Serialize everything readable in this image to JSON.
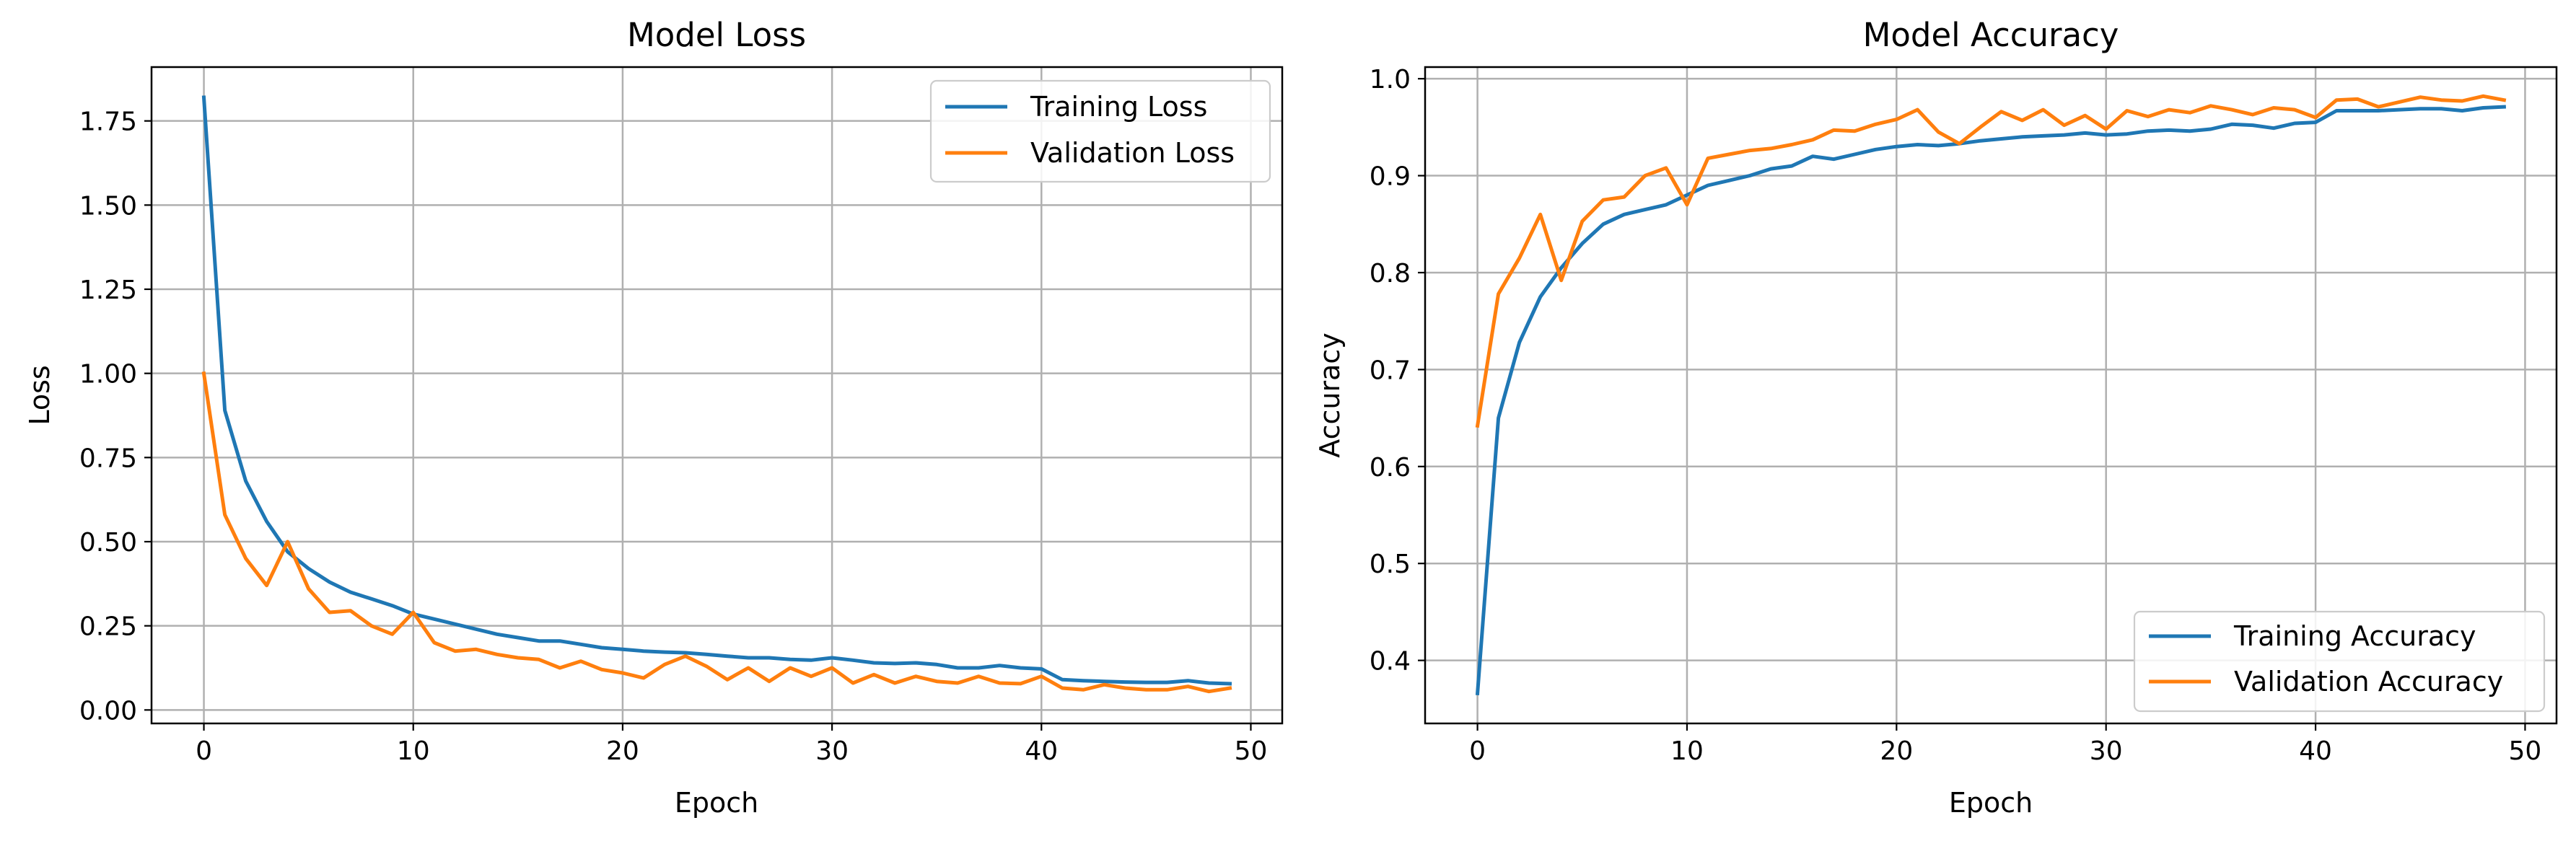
{
  "colors": {
    "training": "#1f77b4",
    "validation": "#ff7f0e"
  },
  "chart_data": [
    {
      "type": "line",
      "title": "Model Loss",
      "xlabel": "Epoch",
      "ylabel": "Loss",
      "grid": true,
      "legend_position": "top-right",
      "xlim": [
        -2.5,
        51.5
      ],
      "ylim": [
        -0.04,
        1.91
      ],
      "xticks": [
        0,
        10,
        20,
        30,
        40,
        50
      ],
      "xtick_labels": [
        "0",
        "10",
        "20",
        "30",
        "40",
        "50"
      ],
      "yticks": [
        0.0,
        0.25,
        0.5,
        0.75,
        1.0,
        1.25,
        1.5,
        1.75
      ],
      "ytick_labels": [
        "0.00",
        "0.25",
        "0.50",
        "0.75",
        "1.00",
        "1.25",
        "1.50",
        "1.75"
      ],
      "x": [
        0,
        1,
        2,
        3,
        4,
        5,
        6,
        7,
        8,
        9,
        10,
        11,
        12,
        13,
        14,
        15,
        16,
        17,
        18,
        19,
        20,
        21,
        22,
        23,
        24,
        25,
        26,
        27,
        28,
        29,
        30,
        31,
        32,
        33,
        34,
        35,
        36,
        37,
        38,
        39,
        40,
        41,
        42,
        43,
        44,
        45,
        46,
        47,
        48,
        49
      ],
      "series": [
        {
          "name": "Training Loss",
          "color_key": "training",
          "values": [
            1.82,
            0.89,
            0.68,
            0.56,
            0.47,
            0.42,
            0.38,
            0.35,
            0.33,
            0.31,
            0.285,
            0.27,
            0.255,
            0.24,
            0.225,
            0.215,
            0.205,
            0.205,
            0.195,
            0.185,
            0.18,
            0.175,
            0.172,
            0.17,
            0.165,
            0.16,
            0.155,
            0.155,
            0.15,
            0.148,
            0.155,
            0.148,
            0.14,
            0.138,
            0.14,
            0.135,
            0.125,
            0.125,
            0.132,
            0.125,
            0.122,
            0.09,
            0.087,
            0.085,
            0.083,
            0.082,
            0.082,
            0.087,
            0.08,
            0.078
          ]
        },
        {
          "name": "Validation Loss",
          "color_key": "validation",
          "values": [
            1.0,
            0.58,
            0.45,
            0.37,
            0.5,
            0.36,
            0.29,
            0.295,
            0.25,
            0.225,
            0.29,
            0.2,
            0.175,
            0.18,
            0.165,
            0.155,
            0.15,
            0.125,
            0.145,
            0.12,
            0.11,
            0.095,
            0.135,
            0.16,
            0.13,
            0.09,
            0.125,
            0.085,
            0.125,
            0.1,
            0.125,
            0.08,
            0.105,
            0.08,
            0.1,
            0.085,
            0.08,
            0.1,
            0.08,
            0.078,
            0.1,
            0.065,
            0.06,
            0.075,
            0.065,
            0.06,
            0.06,
            0.07,
            0.055,
            0.065
          ]
        }
      ]
    },
    {
      "type": "line",
      "title": "Model Accuracy",
      "xlabel": "Epoch",
      "ylabel": "Accuracy",
      "grid": true,
      "legend_position": "bottom-right",
      "xlim": [
        -2.5,
        51.5
      ],
      "ylim": [
        0.335,
        1.012
      ],
      "xticks": [
        0,
        10,
        20,
        30,
        40,
        50
      ],
      "xtick_labels": [
        "0",
        "10",
        "20",
        "30",
        "40",
        "50"
      ],
      "yticks": [
        0.4,
        0.5,
        0.6,
        0.7,
        0.8,
        0.9,
        1.0
      ],
      "ytick_labels": [
        "0.4",
        "0.5",
        "0.6",
        "0.7",
        "0.8",
        "0.9",
        "1.0"
      ],
      "x": [
        0,
        1,
        2,
        3,
        4,
        5,
        6,
        7,
        8,
        9,
        10,
        11,
        12,
        13,
        14,
        15,
        16,
        17,
        18,
        19,
        20,
        21,
        22,
        23,
        24,
        25,
        26,
        27,
        28,
        29,
        30,
        31,
        32,
        33,
        34,
        35,
        36,
        37,
        38,
        39,
        40,
        41,
        42,
        43,
        44,
        45,
        46,
        47,
        48,
        49
      ],
      "series": [
        {
          "name": "Training Accuracy",
          "color_key": "training",
          "values": [
            0.366,
            0.65,
            0.728,
            0.775,
            0.805,
            0.83,
            0.85,
            0.86,
            0.865,
            0.87,
            0.88,
            0.89,
            0.895,
            0.9,
            0.907,
            0.91,
            0.92,
            0.917,
            0.922,
            0.927,
            0.93,
            0.932,
            0.931,
            0.933,
            0.936,
            0.938,
            0.94,
            0.941,
            0.942,
            0.944,
            0.942,
            0.943,
            0.946,
            0.947,
            0.946,
            0.948,
            0.953,
            0.952,
            0.949,
            0.954,
            0.955,
            0.967,
            0.967,
            0.967,
            0.968,
            0.969,
            0.969,
            0.967,
            0.97,
            0.971
          ]
        },
        {
          "name": "Validation Accuracy",
          "color_key": "validation",
          "values": [
            0.642,
            0.778,
            0.815,
            0.86,
            0.792,
            0.853,
            0.875,
            0.878,
            0.9,
            0.908,
            0.87,
            0.918,
            0.922,
            0.926,
            0.928,
            0.932,
            0.937,
            0.947,
            0.946,
            0.953,
            0.958,
            0.968,
            0.945,
            0.933,
            0.95,
            0.966,
            0.957,
            0.968,
            0.952,
            0.962,
            0.948,
            0.967,
            0.961,
            0.968,
            0.965,
            0.972,
            0.968,
            0.963,
            0.97,
            0.968,
            0.96,
            0.978,
            0.979,
            0.971,
            0.976,
            0.981,
            0.978,
            0.977,
            0.982,
            0.978
          ]
        }
      ]
    }
  ]
}
